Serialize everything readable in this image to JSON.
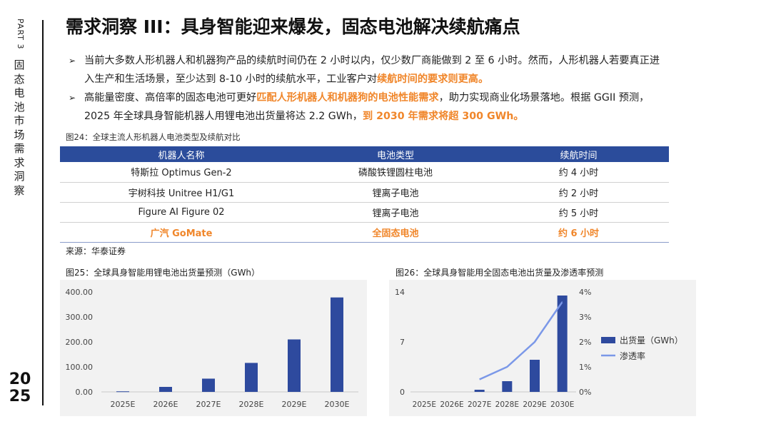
{
  "rail": {
    "part": "PART 3",
    "title_chars": [
      "固",
      "态",
      "电",
      "池",
      "市",
      "场",
      "需",
      "求",
      "洞",
      "察"
    ],
    "year_top": "20",
    "year_bottom": "25"
  },
  "title": "需求洞察 III：具身智能迎来爆发，固态电池解决续航痛点",
  "bullets": [
    {
      "marker": "➢",
      "text": "当前大多数人形机器人和机器狗产品的续航时间仍在 2 小时以内，仅少数厂商能做到 2 至 6 小时。然而，人形机器人若要真正进入生产和生活场景，至少达到 8-10 小时的续航水平，工业客户对",
      "highlight": "续航时间的要求则更高。",
      "text_after": ""
    },
    {
      "marker": "➢",
      "text": "高能量密度、高倍率的固态电池可更好",
      "highlight": "匹配人形机器人和机器狗的电池性能需求",
      "text_after": "，助力实现商业化场景落地。根据 GGII 预测，2025 年全球具身智能机器人用锂电池出货量将达 2.2 GWh，",
      "highlight2": "到 2030 年需求将超 300 GWh。"
    }
  ],
  "table": {
    "caption": "图24：全球主流人形机器人电池类型及续航对比",
    "headers": [
      "机器人名称",
      "电池类型",
      "续航时间"
    ],
    "rows": [
      [
        "特斯拉 Optimus Gen-2",
        "磷酸铁锂圆柱电池",
        "约 4 小时"
      ],
      [
        "宇树科技 Unitree H1/G1",
        "锂离子电池",
        "约 2 小时"
      ],
      [
        "Figure AI Figure 02",
        "锂离子电池",
        "约 5 小时"
      ],
      [
        "广汽 GoMate",
        "全固态电池",
        "约 6 小时"
      ]
    ],
    "highlight_row_index": 3,
    "source": "来源：华泰证券"
  },
  "colors": {
    "accent_orange": "#F0862A",
    "header_blue": "#2B4C9B",
    "bar_blue": "#2E4A9E",
    "line_blue": "#7B98E8",
    "chart_bg": "#F2F2F2"
  },
  "chart_data": [
    {
      "type": "bar",
      "caption": "图25：全球具身智能用锂电池出货量预测（GWh）",
      "categories": [
        "2025E",
        "2026E",
        "2027E",
        "2028E",
        "2029E",
        "2030E"
      ],
      "values": [
        2.2,
        20,
        53,
        116,
        210,
        378
      ],
      "ylim": [
        0,
        400
      ],
      "yticks": [
        "0.00",
        "100.00",
        "200.00",
        "300.00",
        "400.00"
      ],
      "grid": false
    },
    {
      "type": "bar",
      "caption": "图26：全球具身智能用全固态电池出货量及渗透率预测",
      "categories": [
        "2025E",
        "2026E",
        "2027E",
        "2028E",
        "2029E",
        "2030E"
      ],
      "series": [
        {
          "name": "出货量（GWh）",
          "kind": "bar",
          "axis": "left",
          "values": [
            0,
            0,
            0.3,
            1.5,
            4.5,
            13.5
          ]
        },
        {
          "name": "渗透率",
          "kind": "line",
          "axis": "right",
          "values": [
            null,
            null,
            0.5,
            1.0,
            2.0,
            3.6
          ]
        }
      ],
      "ylim_left": [
        0,
        14
      ],
      "yticks_left": [
        "0",
        "7",
        "14"
      ],
      "ylim_right": [
        0,
        4
      ],
      "yticks_right": [
        "0%",
        "1%",
        "2%",
        "3%",
        "4%"
      ],
      "legend_position": "right",
      "grid": false
    }
  ]
}
